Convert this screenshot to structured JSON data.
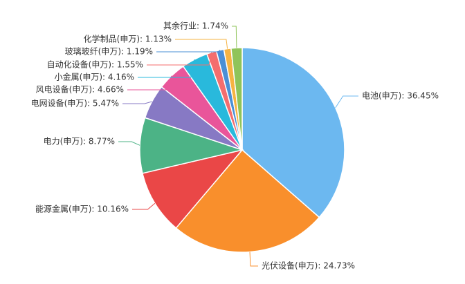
{
  "chart_data": {
    "type": "pie",
    "values": [
      36.45,
      24.73,
      10.16,
      8.77,
      5.47,
      4.66,
      4.16,
      1.55,
      1.19,
      1.13,
      1.74
    ],
    "value_labels": [
      "电池(申万): 36.45%",
      "光伏设备(申万): 24.73%",
      "能源金属(申万): 10.16%",
      "电力(申万): 8.77%",
      "电网设备(申万): 5.47%",
      "风电设备(申万): 4.66%",
      "小金属(申万): 4.16%",
      "自动化设备(申万): 1.55%",
      "玻璃玻纤(申万): 1.19%",
      "化学制品(申万): 1.13%",
      "其余行业: 1.74%"
    ],
    "colors": [
      "#6cb8f0",
      "#f98f2c",
      "#ea4747",
      "#4cb386",
      "#8779c4",
      "#e9559a",
      "#29b9dc",
      "#f46e6e",
      "#4a8fd6",
      "#f5b342",
      "#8fc45a"
    ]
  }
}
